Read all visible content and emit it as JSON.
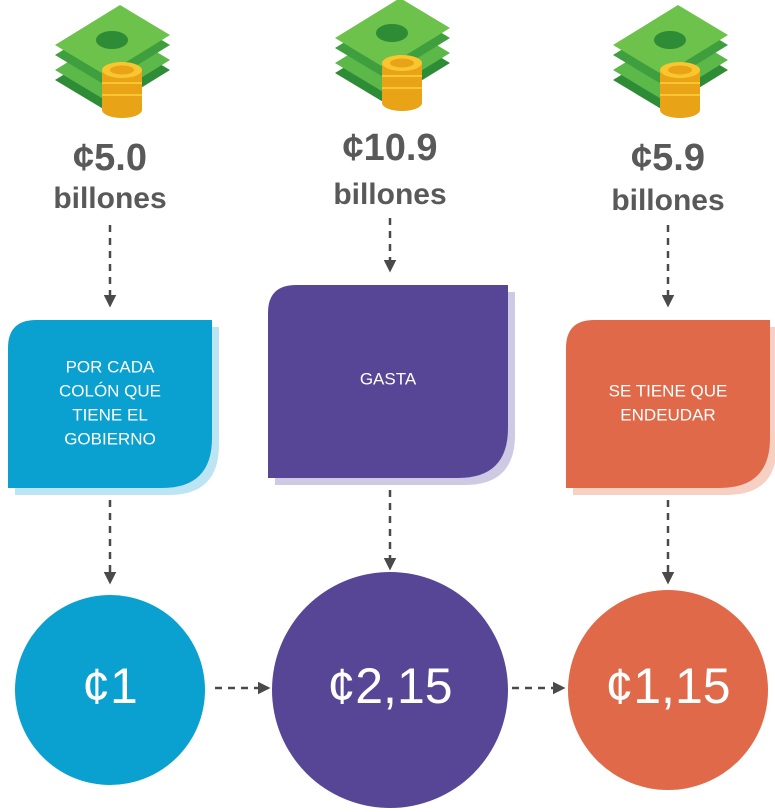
{
  "columns": [
    {
      "amount": "¢5.0",
      "unit": "billones",
      "box_lines": [
        "POR CADA",
        "COLÓN QUE",
        "TIENE EL",
        "GOBIERNO"
      ],
      "circle": "¢1"
    },
    {
      "amount": "¢10.9",
      "unit": "billones",
      "box_lines": [
        "GASTA"
      ],
      "circle": "¢2,15"
    },
    {
      "amount": "¢5.9",
      "unit": "billones",
      "box_lines": [
        "SE TIENE QUE",
        "ENDEUDAR"
      ],
      "circle": "¢1,15"
    }
  ]
}
